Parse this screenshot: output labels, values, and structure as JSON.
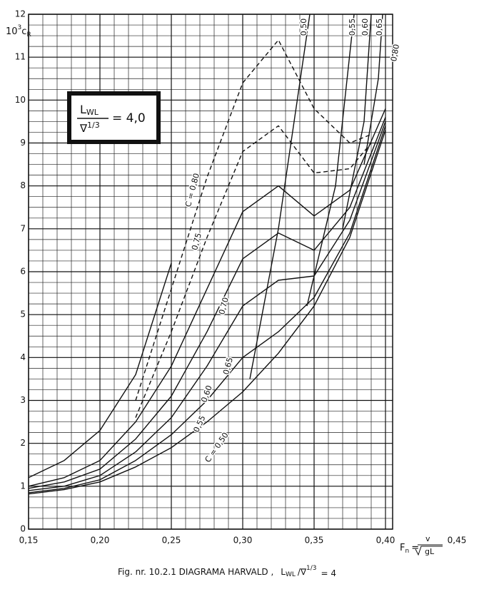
{
  "chart_data": {
    "type": "line",
    "y_label": {
      "main": "10",
      "sup": "3",
      "sym": "c",
      "sub": "R"
    },
    "x_label": {
      "sym": "F",
      "sub": "n",
      "eq": "=",
      "num": "v",
      "den": "gL"
    },
    "box": {
      "sym": "L",
      "sub": "WL",
      "den": "∇",
      "den_sup": "1/3",
      "rhs": "= 4,0"
    },
    "caption": {
      "text": "Fig. nr. 10.2.1  DIAGRAMA  HARVALD ,",
      "sym": "L",
      "sub": "WL",
      "den": "/∇",
      "den_sup": "1/3",
      "rhs": "= 4"
    },
    "xlim": [
      0.15,
      0.405
    ],
    "ylim": [
      0,
      12
    ],
    "xticks": [
      {
        "value": 0.15,
        "label": "0,15"
      },
      {
        "value": 0.2,
        "label": "0,20"
      },
      {
        "value": 0.25,
        "label": "0,25"
      },
      {
        "value": 0.3,
        "label": "0,30"
      },
      {
        "value": 0.35,
        "label": "0,35"
      },
      {
        "value": 0.4,
        "label": "0,40"
      },
      {
        "value": 0.45,
        "label": "0,45"
      }
    ],
    "yticks": [
      0,
      1,
      2,
      3,
      4,
      5,
      6,
      7,
      8,
      9,
      10,
      11,
      12
    ],
    "grid": true,
    "x_minor_step": 0.01,
    "y_minor_step": 0.25,
    "series": [
      {
        "color": "#111",
        "x": [
          0.15,
          0.175,
          0.2,
          0.225,
          0.25,
          0.275,
          0.3,
          0.325,
          0.35,
          0.375,
          0.4
        ],
        "values": [
          0.82,
          0.92,
          1.1,
          1.45,
          1.9,
          2.5,
          3.2,
          4.1,
          5.2,
          6.8,
          9.3
        ]
      },
      {
        "color": "#111",
        "x": [
          0.15,
          0.175,
          0.2,
          0.225,
          0.25,
          0.275,
          0.3,
          0.325,
          0.35,
          0.375,
          0.4
        ],
        "values": [
          0.85,
          0.95,
          1.15,
          1.6,
          2.2,
          3.0,
          4.0,
          4.6,
          5.4,
          6.9,
          9.4
        ]
      },
      {
        "color": "#111",
        "x": [
          0.15,
          0.175,
          0.2,
          0.225,
          0.25,
          0.275,
          0.3,
          0.325,
          0.35,
          0.375,
          0.4
        ],
        "values": [
          0.9,
          1.0,
          1.25,
          1.8,
          2.6,
          3.8,
          5.2,
          5.8,
          5.9,
          7.2,
          9.5
        ]
      },
      {
        "color": "#111",
        "x": [
          0.15,
          0.175,
          0.2,
          0.225,
          0.25,
          0.275,
          0.3,
          0.325,
          0.35,
          0.375,
          0.4
        ],
        "values": [
          0.95,
          1.1,
          1.4,
          2.1,
          3.1,
          4.6,
          6.3,
          6.9,
          6.5,
          7.5,
          9.6
        ]
      },
      {
        "color": "#111",
        "x": [
          0.15,
          0.175,
          0.2,
          0.225,
          0.25,
          0.275,
          0.3,
          0.325,
          0.35,
          0.375,
          0.4
        ],
        "values": [
          1.0,
          1.2,
          1.6,
          2.5,
          3.8,
          5.6,
          7.4,
          8.0,
          7.3,
          7.9,
          9.8
        ]
      },
      {
        "color": "#111",
        "dash": true,
        "x": [
          0.225,
          0.25,
          0.275,
          0.3,
          0.325,
          0.35,
          0.375,
          0.39
        ],
        "values": [
          2.6,
          4.6,
          6.8,
          8.8,
          9.4,
          8.3,
          8.4,
          9.0
        ]
      },
      {
        "color": "#111",
        "dash": true,
        "x": [
          0.225,
          0.25,
          0.275,
          0.3,
          0.325,
          0.35,
          0.375,
          0.39
        ],
        "values": [
          3.0,
          5.6,
          8.2,
          10.4,
          11.4,
          9.8,
          9.0,
          9.2
        ]
      },
      {
        "color": "#111",
        "x": [
          0.15,
          0.175,
          0.2,
          0.225,
          0.25
        ],
        "values": [
          1.2,
          1.6,
          2.3,
          3.6,
          6.2
        ]
      },
      {
        "color": "#111",
        "x": [
          0.305,
          0.325,
          0.347
        ],
        "values": [
          3.5,
          7.0,
          12
        ]
      },
      {
        "color": "#111",
        "x": [
          0.345,
          0.365,
          0.378
        ],
        "values": [
          5.2,
          8.0,
          12
        ]
      },
      {
        "color": "#111",
        "x": [
          0.37,
          0.385,
          0.39
        ],
        "values": [
          7.0,
          9.5,
          12
        ]
      },
      {
        "color": "#111",
        "x": [
          0.385,
          0.395,
          0.398
        ],
        "values": [
          8.5,
          10.5,
          12
        ]
      }
    ],
    "annotations": [
      "C = 0,80",
      "0,75",
      "0,70",
      "0,65",
      "0,60",
      "0,55",
      "C = 0,50",
      "0,50",
      "0,55",
      "0,60",
      "0,65",
      "0,80"
    ]
  }
}
